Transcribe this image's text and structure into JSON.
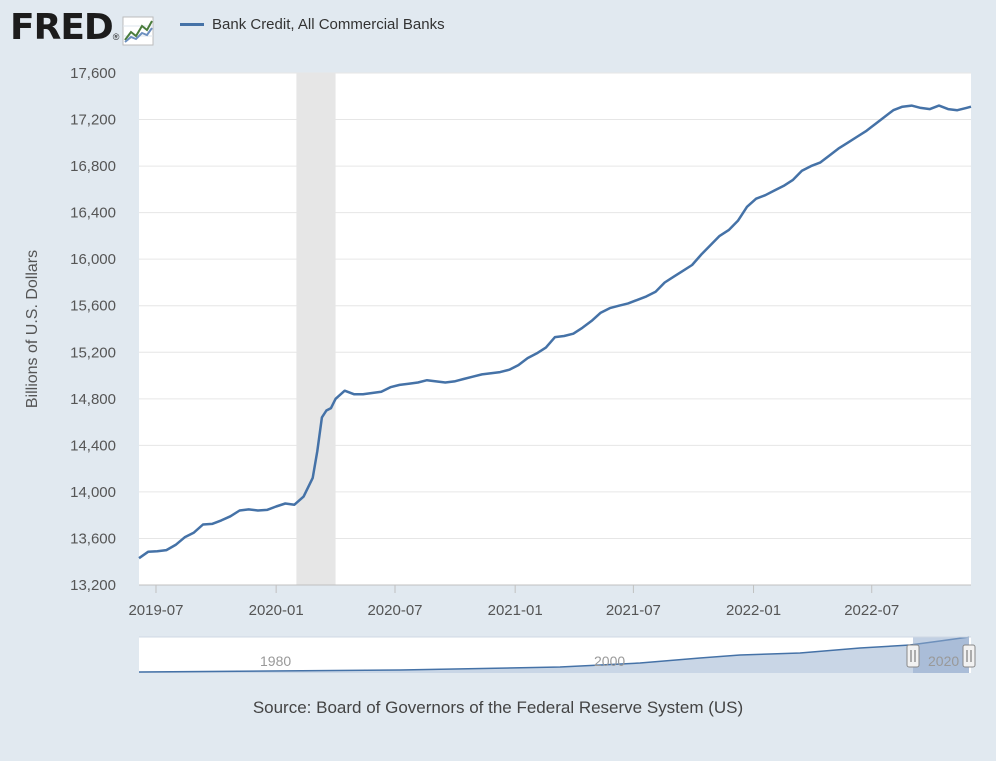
{
  "brand": {
    "logo_text": "FRED",
    "registered_mark": "®",
    "logo_icon": "trend-line-chart-icon"
  },
  "legend": {
    "label": "Bank Credit, All Commercial Banks",
    "color": "#4572a7"
  },
  "source": "Source: Board of Governors of the Federal Reserve System (US)",
  "navigator": {
    "labels": [
      "1980",
      "2000",
      "2020"
    ]
  },
  "chart_data": {
    "type": "line",
    "title": "",
    "xlabel": "",
    "ylabel": "Billions of U.S. Dollars",
    "ylim": [
      13200,
      17600
    ],
    "yticks": [
      13200,
      13600,
      14000,
      14400,
      14800,
      15200,
      15600,
      16000,
      16400,
      16800,
      17200,
      17600
    ],
    "ytick_labels": [
      "13,200",
      "13,600",
      "14,000",
      "14,400",
      "14,800",
      "15,200",
      "15,600",
      "16,000",
      "16,400",
      "16,800",
      "17,200",
      "17,600"
    ],
    "xlim": [
      "2019-06-05",
      "2022-11-30"
    ],
    "xticks": [
      "2019-07-01",
      "2020-01-01",
      "2020-07-01",
      "2021-01-01",
      "2021-07-01",
      "2022-01-01",
      "2022-07-01"
    ],
    "xtick_labels": [
      "2019-07",
      "2020-01",
      "2020-07",
      "2021-01",
      "2021-07",
      "2022-01",
      "2022-07"
    ],
    "grid": true,
    "recession": {
      "start": "2020-02-01",
      "end": "2020-04-01",
      "color": "#e6e6e6"
    },
    "series": [
      {
        "name": "Bank Credit, All Commercial Banks",
        "color": "#4572a7",
        "x": [
          "2019-06-05",
          "2019-06-19",
          "2019-07-03",
          "2019-07-17",
          "2019-07-31",
          "2019-08-14",
          "2019-08-28",
          "2019-09-11",
          "2019-09-25",
          "2019-10-09",
          "2019-10-23",
          "2019-11-06",
          "2019-11-20",
          "2019-12-04",
          "2019-12-18",
          "2020-01-01",
          "2020-01-15",
          "2020-01-29",
          "2020-02-12",
          "2020-02-26",
          "2020-03-04",
          "2020-03-11",
          "2020-03-18",
          "2020-03-25",
          "2020-04-01",
          "2020-04-15",
          "2020-04-29",
          "2020-05-13",
          "2020-05-27",
          "2020-06-10",
          "2020-06-24",
          "2020-07-08",
          "2020-07-22",
          "2020-08-05",
          "2020-08-19",
          "2020-09-02",
          "2020-09-16",
          "2020-09-30",
          "2020-10-14",
          "2020-10-28",
          "2020-11-11",
          "2020-11-25",
          "2020-12-09",
          "2020-12-23",
          "2021-01-06",
          "2021-01-20",
          "2021-02-03",
          "2021-02-17",
          "2021-03-03",
          "2021-03-17",
          "2021-03-31",
          "2021-04-14",
          "2021-04-28",
          "2021-05-12",
          "2021-05-26",
          "2021-06-09",
          "2021-06-23",
          "2021-07-07",
          "2021-07-21",
          "2021-08-04",
          "2021-08-18",
          "2021-09-01",
          "2021-09-15",
          "2021-09-29",
          "2021-10-13",
          "2021-10-27",
          "2021-11-10",
          "2021-11-24",
          "2021-12-08",
          "2021-12-22",
          "2022-01-05",
          "2022-01-19",
          "2022-02-02",
          "2022-02-16",
          "2022-03-02",
          "2022-03-16",
          "2022-03-30",
          "2022-04-13",
          "2022-04-27",
          "2022-05-11",
          "2022-05-25",
          "2022-06-08",
          "2022-06-22",
          "2022-07-06",
          "2022-07-20",
          "2022-08-03",
          "2022-08-17",
          "2022-08-31",
          "2022-09-14",
          "2022-09-28",
          "2022-10-12",
          "2022-10-26",
          "2022-11-09",
          "2022-11-23",
          "2022-11-30"
        ],
        "y": [
          13430,
          13485,
          13490,
          13500,
          13545,
          13610,
          13650,
          13720,
          13725,
          13755,
          13790,
          13840,
          13850,
          13840,
          13845,
          13875,
          13900,
          13890,
          13960,
          14120,
          14350,
          14640,
          14700,
          14720,
          14800,
          14870,
          14840,
          14840,
          14850,
          14860,
          14900,
          14920,
          14930,
          14940,
          14960,
          14950,
          14940,
          14950,
          14970,
          14990,
          15010,
          15020,
          15030,
          15050,
          15090,
          15150,
          15190,
          15240,
          15330,
          15340,
          15360,
          15410,
          15470,
          15540,
          15580,
          15600,
          15620,
          15650,
          15680,
          15720,
          15800,
          15850,
          15900,
          15950,
          16040,
          16120,
          16200,
          16250,
          16330,
          16450,
          16520,
          16550,
          16590,
          16630,
          16680,
          16760,
          16800,
          16830,
          16890,
          16950,
          17000,
          17050,
          17100,
          17160,
          17220,
          17280,
          17310,
          17320,
          17300,
          17290,
          17320,
          17290,
          17280,
          17300,
          17310
        ]
      }
    ]
  }
}
